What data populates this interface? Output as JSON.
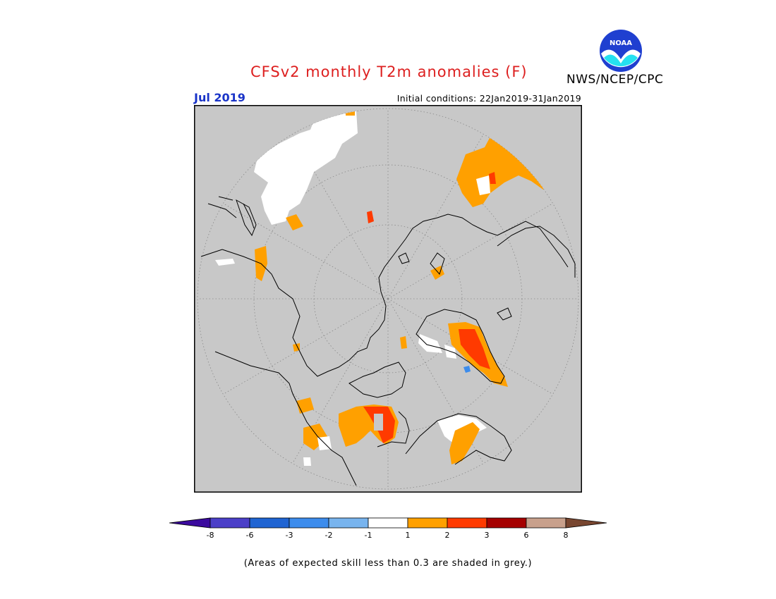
{
  "header": {
    "title": "CFSv2 monthly T2m anomalies (F)",
    "organization": "NWS/NCEP/CPC",
    "logo_text": "NOAA",
    "target_month": "Jul 2019",
    "initial_conditions": "Initial conditions: 22Jan2019-31Jan2019"
  },
  "map": {
    "projection": "north polar stereographic",
    "background_color": "#c8c8c8",
    "coastline_color": "#000000",
    "graticule_style": "dotted grey circles and meridians"
  },
  "legend": {
    "tick_labels": [
      "-8",
      "-6",
      "-3",
      "-2",
      "-1",
      "1",
      "2",
      "3",
      "6",
      "8"
    ],
    "colors": [
      "#3b0a9e",
      "#4b3fc8",
      "#1f64d2",
      "#3c8cec",
      "#78b4ee",
      "#ffffff",
      "#ffa000",
      "#ff3a00",
      "#a50000",
      "#c8a08c",
      "#784630"
    ],
    "footnote": "(Areas of expected skill less than 0.3 are shaded in grey.)"
  }
}
